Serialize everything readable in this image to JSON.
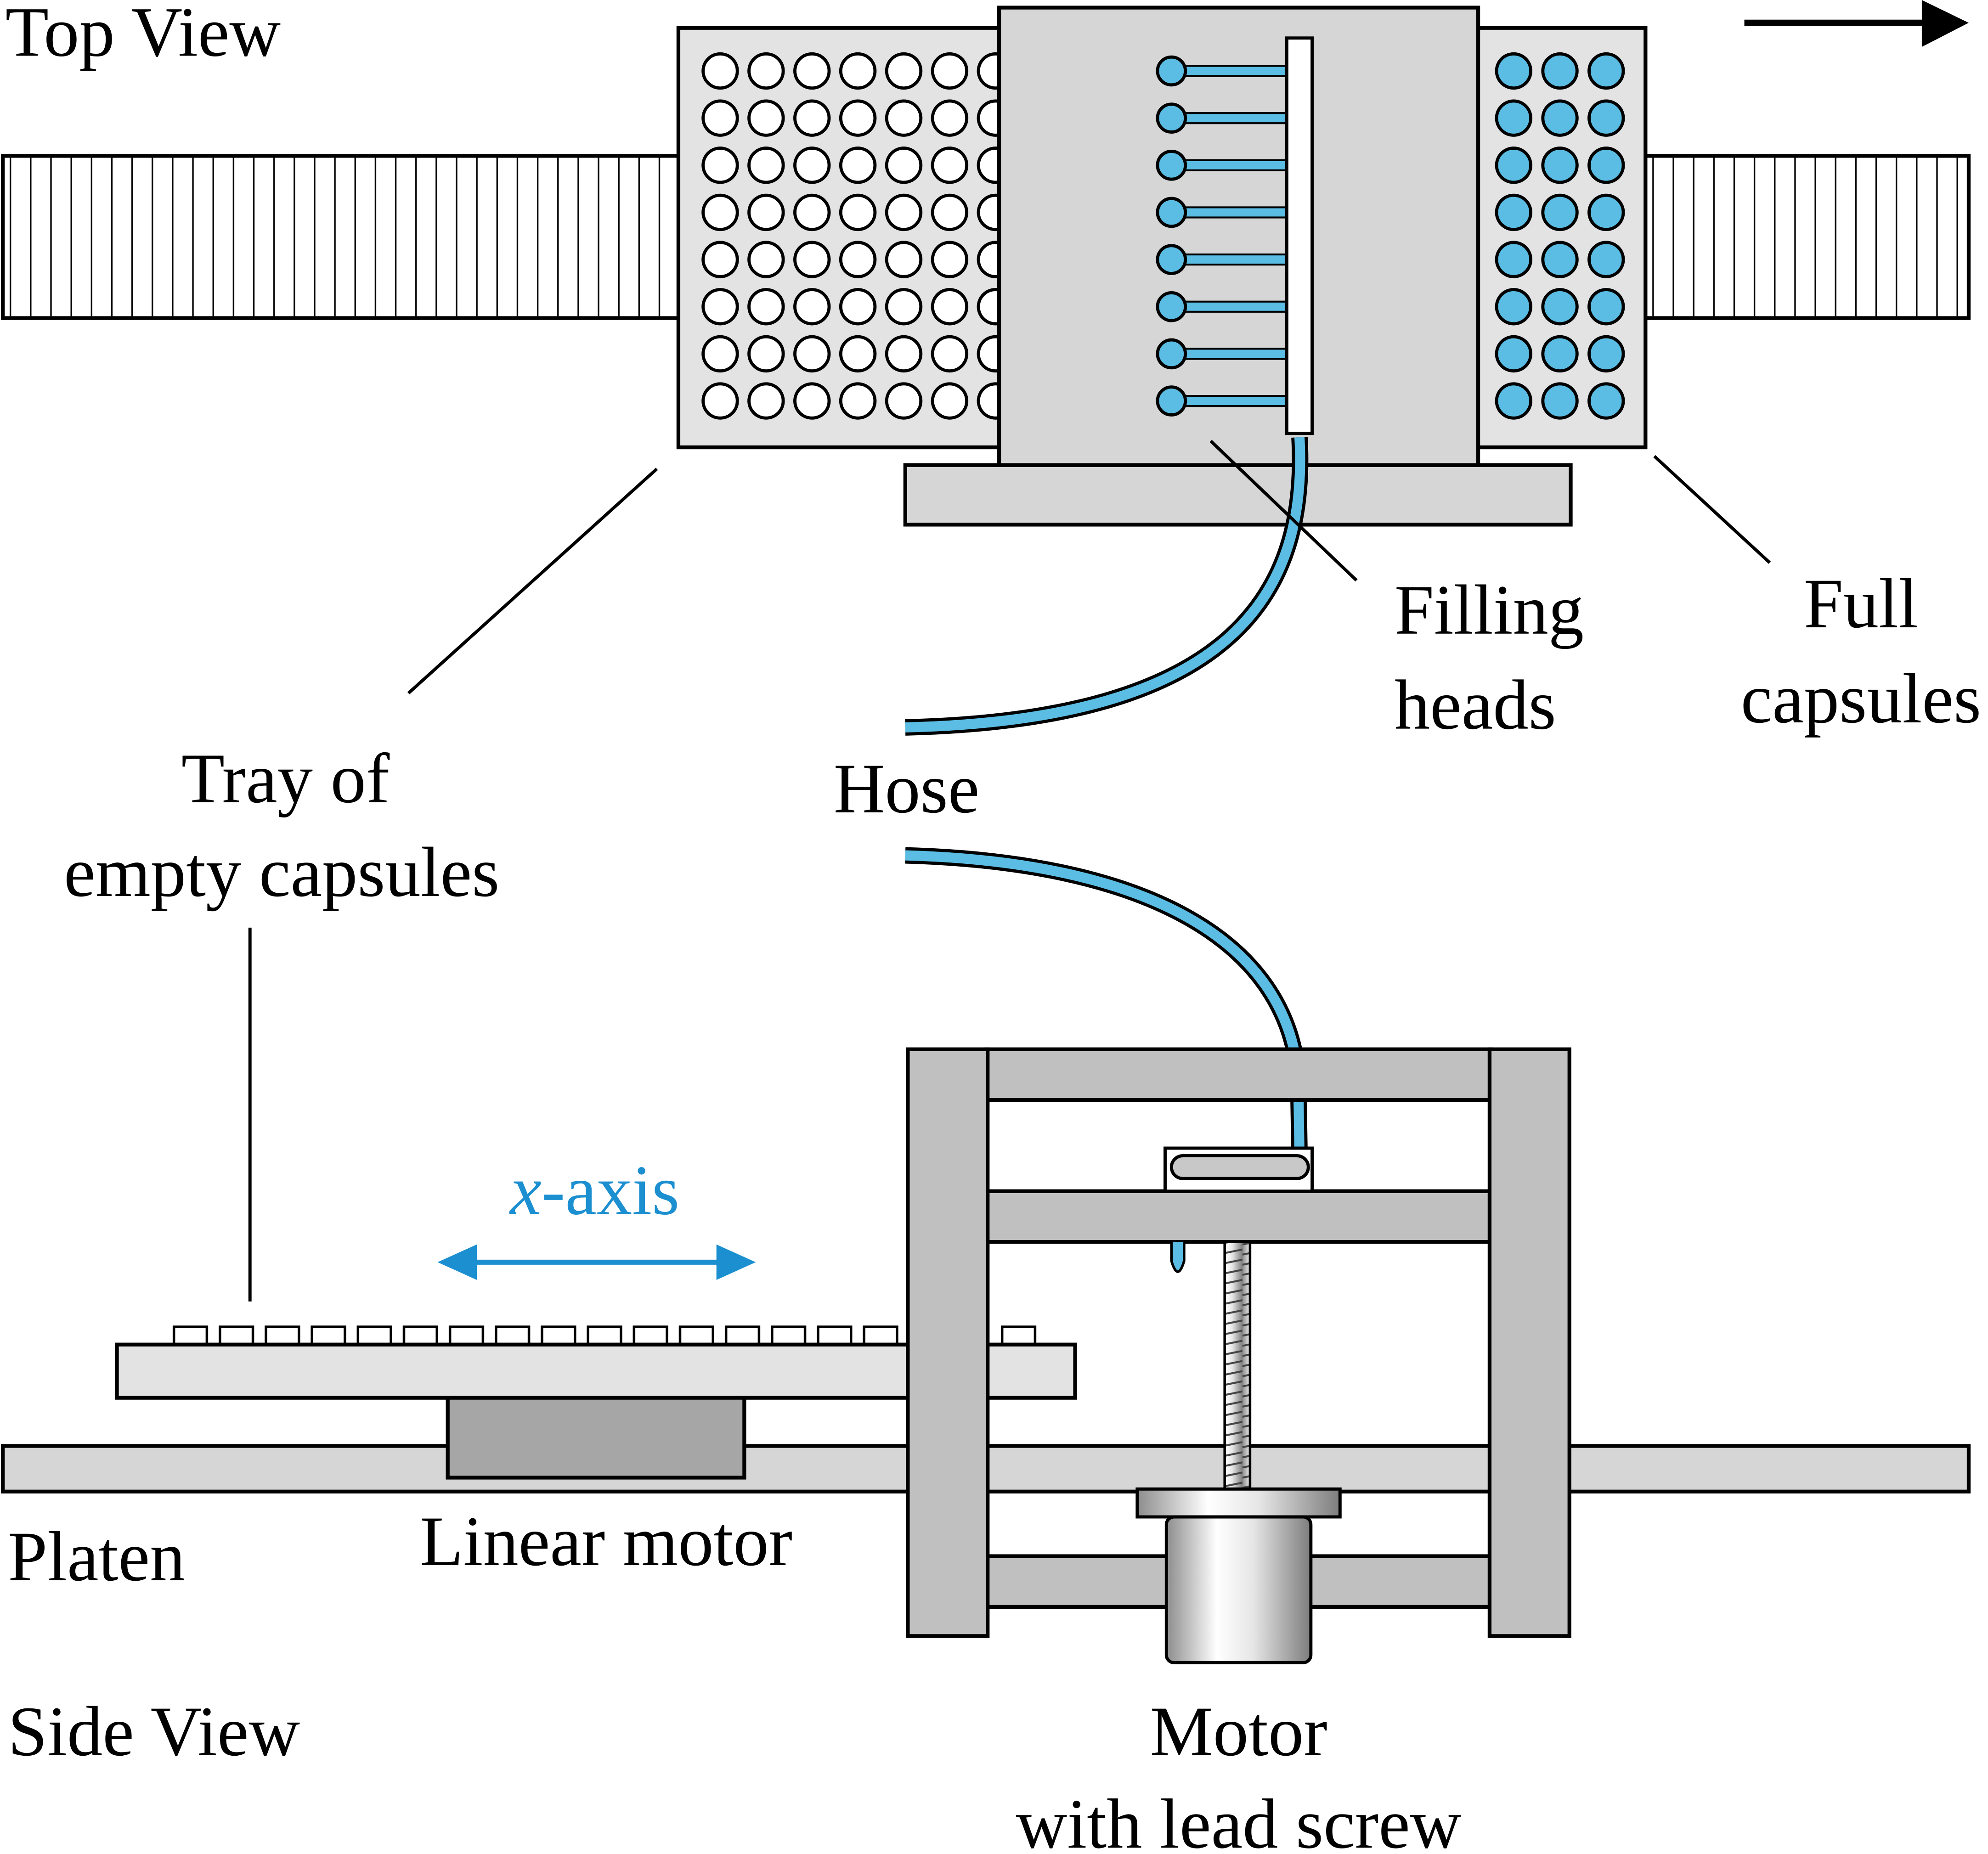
{
  "labels": {
    "top_view": "Top View",
    "side_view": "Side View",
    "tray_line1": "Tray of",
    "tray_line2": "empty capsules",
    "hose": "Hose",
    "filling_line1": "Filling",
    "filling_line2": "heads",
    "full_line1": "Full",
    "full_line2": "capsules",
    "axis_var": "x",
    "axis_rest": "-axis",
    "platen": "Platen",
    "linear_motor": "Linear motor",
    "motor_line1": "Motor",
    "motor_line2": "with lead screw"
  },
  "colors": {
    "hose": "#5bbde3",
    "accent": "#1b8fd0",
    "panel": "#d6d6d6",
    "frame": "#c0c0c0",
    "motor_block": "#a6a6a6"
  }
}
